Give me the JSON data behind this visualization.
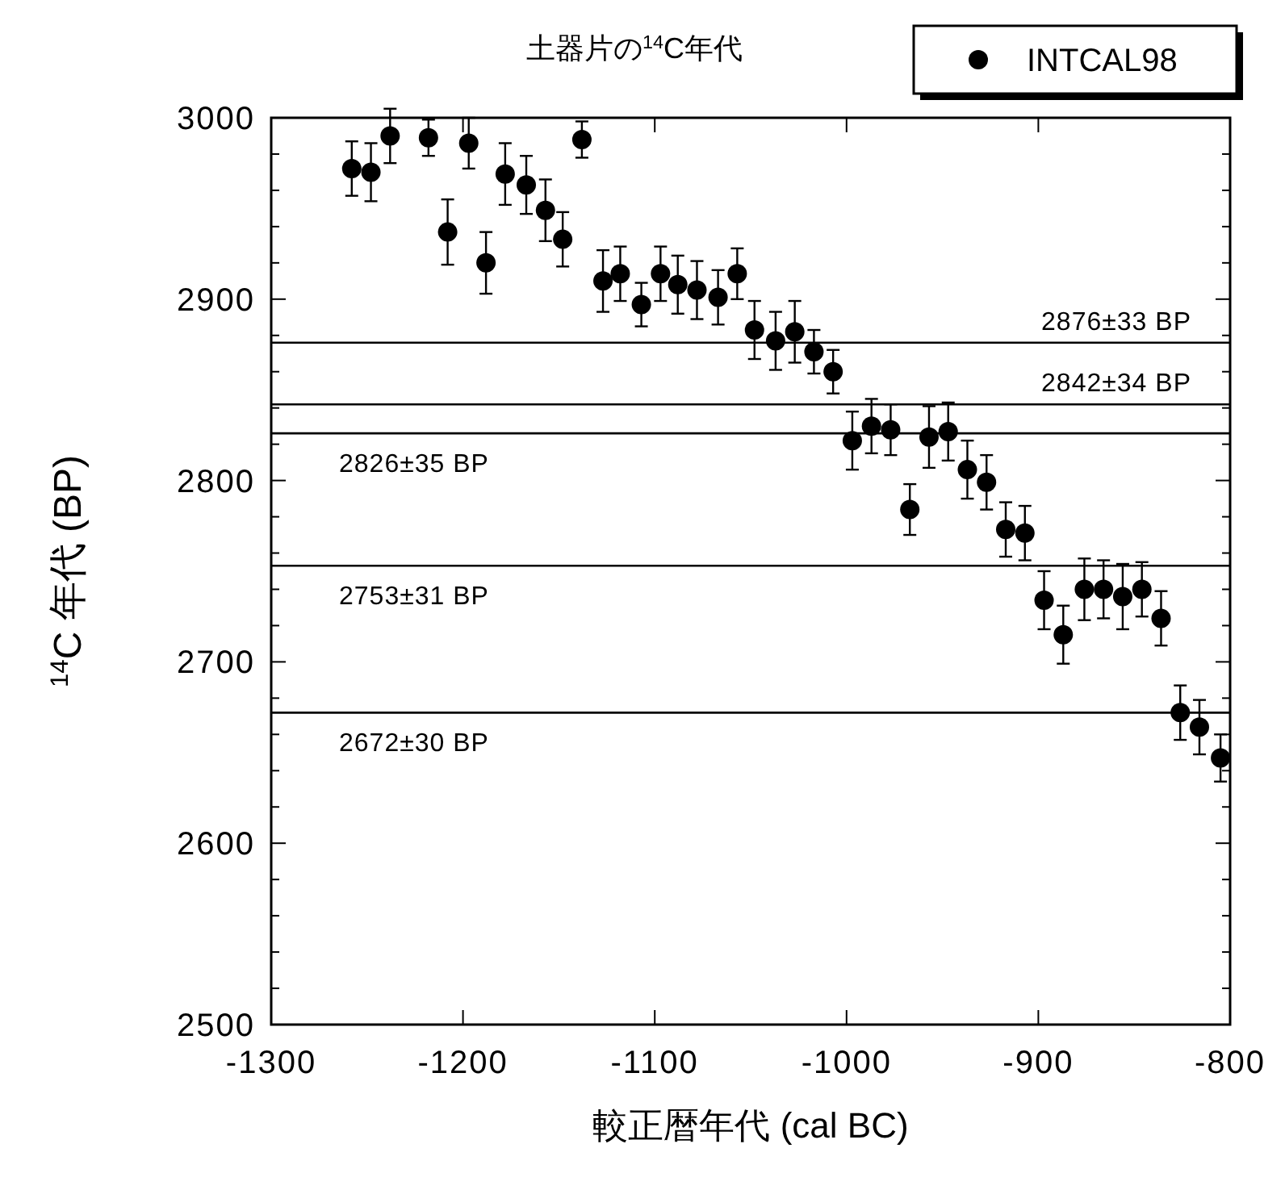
{
  "chart_data": {
    "type": "scatter",
    "title": "土器片の$^{14}$C年代",
    "xlabel": "較正暦年代 (cal BC)",
    "ylabel": "$^{14}$C 年代 (BP)",
    "xlim": [
      -1300,
      -800
    ],
    "xticks": [
      -1300,
      -1200,
      -1100,
      -1000,
      -900,
      -800
    ],
    "ylim": [
      2500,
      3000
    ],
    "yticks": [
      2500,
      {
        "value": 2520,
        "label": null
      },
      {
        "value": 2540,
        "label": null
      },
      {
        "value": 2560,
        "label": null
      },
      {
        "value": 2580,
        "label": null
      },
      2600,
      {
        "value": 2620,
        "label": null
      },
      {
        "value": 2640,
        "label": null
      },
      {
        "value": 2660,
        "label": null
      },
      {
        "value": 2680,
        "label": null
      },
      2700,
      {
        "value": 2720,
        "label": null
      },
      {
        "value": 2740,
        "label": null
      },
      {
        "value": 2760,
        "label": null
      },
      {
        "value": 2780,
        "label": null
      },
      2800,
      {
        "value": 2820,
        "label": null
      },
      {
        "value": 2840,
        "label": null
      },
      {
        "value": 2860,
        "label": null
      },
      {
        "value": 2880,
        "label": null
      },
      2900,
      {
        "value": 2920,
        "label": null
      },
      {
        "value": 2940,
        "label": null
      },
      {
        "value": 2960,
        "label": null
      },
      {
        "value": 2980,
        "label": null
      },
      3000
    ],
    "grid": false,
    "legend": "top right",
    "marker": "circle",
    "series": [
      {
        "name": "INTCAL98",
        "color": "#000000",
        "x": [
          -1258,
          -1248,
          -1238,
          -1218,
          -1208,
          -1197,
          -1188,
          -1178,
          -1167,
          -1157,
          -1148,
          -1138,
          -1127,
          -1118,
          -1107,
          -1097,
          -1088,
          -1078,
          -1067,
          -1057,
          -1048,
          -1037,
          -1027,
          -1017,
          -1007,
          -997,
          -987,
          -977,
          -967,
          -957,
          -947,
          -937,
          -927,
          -917,
          -907,
          -897,
          -887,
          -876,
          -866,
          -856,
          -846,
          -836,
          -826,
          -816,
          -805
        ],
        "values": [
          2972,
          2970,
          2990,
          2989,
          2937,
          2986,
          2920,
          2969,
          2963,
          2949,
          2933,
          2988,
          2910,
          2914,
          2897,
          2914,
          2908,
          2905,
          2901,
          2914,
          2883,
          2877,
          2882,
          2871,
          2860,
          2822,
          2830,
          2828,
          2784,
          2824,
          2827,
          2806,
          2799,
          2773,
          2771,
          2734,
          2715,
          2740,
          2740,
          2736,
          2740,
          2724,
          2672,
          2664,
          2647
        ],
        "errors": [
          15,
          16,
          15,
          10,
          18,
          14,
          17,
          17,
          16,
          17,
          15,
          10,
          17,
          15,
          12,
          15,
          16,
          16,
          15,
          14,
          16,
          16,
          17,
          12,
          12,
          16,
          15,
          14,
          14,
          17,
          16,
          16,
          15,
          15,
          15,
          16,
          16,
          17,
          16,
          18,
          15,
          15,
          15,
          15,
          13
        ]
      }
    ],
    "ref_lines": [
      {
        "axis": "y",
        "value": 2876,
        "label": "2876±33 BP",
        "color": "#000000"
      },
      {
        "axis": "y",
        "value": 2842,
        "label": "2842±34 BP",
        "color": "#000000"
      },
      {
        "axis": "y",
        "value": 2826,
        "label": "2826±35 BP",
        "color": "#000000"
      },
      {
        "axis": "y",
        "value": 2753,
        "label": "2753±31 BP",
        "color": "#000000"
      },
      {
        "axis": "y",
        "value": 2672,
        "label": "2672±30 BP",
        "color": "#000000"
      }
    ]
  }
}
